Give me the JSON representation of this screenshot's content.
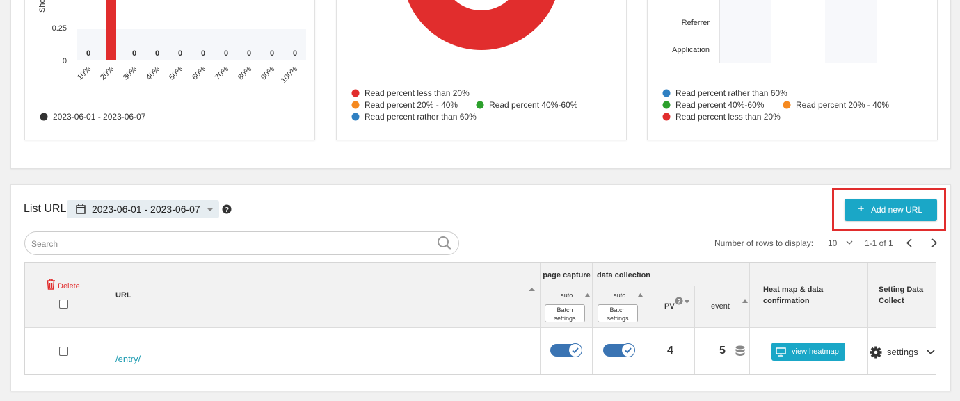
{
  "bar_panel": {
    "y_label": "Sho",
    "y_ticks": [
      "0.25",
      "0"
    ],
    "categories": [
      "10%",
      "20%",
      "30%",
      "40%",
      "50%",
      "60%",
      "70%",
      "80%",
      "90%",
      "100%"
    ],
    "value_labels": [
      "0",
      null,
      "0",
      "0",
      "0",
      "0",
      "0",
      "0",
      "0",
      "0"
    ],
    "legend": "2023-06-01 - 2023-06-07"
  },
  "donut_panel": {
    "legend": [
      {
        "name": "Read percent less than 20%",
        "color": "#e12d2d"
      },
      {
        "name": "Read percent 20% - 40%",
        "color": "#f5891f"
      },
      {
        "name": "Read percent 40%-60%",
        "color": "#2ca02c"
      },
      {
        "name": "Read percent rather than 60%",
        "color": "#2f80c2"
      }
    ]
  },
  "source_panel": {
    "categories": [
      "Referrer",
      "Application"
    ],
    "legend": [
      {
        "name": "Read percent rather than 60%",
        "color": "#2f80c2"
      },
      {
        "name": "Read percent 40%-60%",
        "color": "#2ca02c"
      },
      {
        "name": "Read percent 20% - 40%",
        "color": "#f5891f"
      },
      {
        "name": "Read percent less than 20%",
        "color": "#e12d2d"
      }
    ]
  },
  "list": {
    "title": "List URL",
    "date_range": "2023-06-01 - 2023-06-07",
    "add_button": "Add new URL",
    "search_placeholder": "Search",
    "rows_label": "Number of rows to display:",
    "rows_value": "10",
    "pagination": "1-1 of 1",
    "table": {
      "headers": {
        "delete": "Delete",
        "url": "URL",
        "page_capture": "page capture",
        "data_collection": "data collection",
        "capture_auto": "auto",
        "capture_batch": "Batch settings",
        "collection_auto": "auto",
        "collection_batch": "Batch settings",
        "pv": "PV",
        "event": "event",
        "heatmap": "Heat map & data confirmation",
        "setting": "Setting Data Collect"
      },
      "rows": [
        {
          "url": "/entry/",
          "pv": "4",
          "event": "5",
          "heatmap_button": "view heatmap",
          "settings": "settings"
        }
      ]
    }
  }
}
